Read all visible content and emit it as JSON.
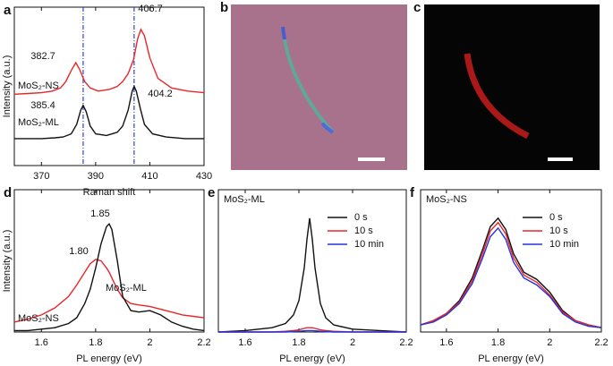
{
  "chart_data": [
    {
      "type": "line",
      "panel": "a",
      "xlabel": "Raman shift",
      "ylabel": "Intensity (a.u.)",
      "xlim": [
        360,
        430
      ],
      "ylim": [
        0,
        1
      ],
      "xticks": [
        370,
        390,
        410,
        430
      ],
      "vlines": [
        385.4,
        404.2
      ],
      "vline_color": "#3344cc",
      "series": [
        {
          "name": "MoS₂-NS",
          "color": "#e8262a",
          "x": [
            360,
            365,
            370,
            374,
            377,
            379,
            381,
            382.7,
            384,
            386,
            388,
            391,
            395,
            398,
            400,
            402,
            404,
            405.5,
            406.7,
            408,
            410,
            413,
            418,
            424,
            430
          ],
          "values": [
            0.45,
            0.455,
            0.46,
            0.47,
            0.49,
            0.53,
            0.6,
            0.65,
            0.61,
            0.53,
            0.49,
            0.47,
            0.48,
            0.5,
            0.53,
            0.58,
            0.67,
            0.8,
            0.86,
            0.82,
            0.68,
            0.55,
            0.49,
            0.47,
            0.46
          ]
        },
        {
          "name": "MoS₂-ML",
          "color": "#111111",
          "x": [
            360,
            365,
            370,
            375,
            378,
            381,
            383,
            384.5,
            385.4,
            386.5,
            388,
            390,
            394,
            398,
            400,
            402,
            403.5,
            404.2,
            405,
            406.5,
            408,
            411,
            416,
            423,
            430
          ],
          "values": [
            0.17,
            0.17,
            0.17,
            0.175,
            0.18,
            0.2,
            0.26,
            0.35,
            0.38,
            0.34,
            0.25,
            0.2,
            0.19,
            0.21,
            0.25,
            0.35,
            0.47,
            0.5,
            0.47,
            0.36,
            0.26,
            0.2,
            0.18,
            0.17,
            0.17
          ]
        }
      ],
      "annotations": [
        {
          "text": "382.7",
          "color": "#e8262a"
        },
        {
          "text": "406.7",
          "color": "#e8262a"
        },
        {
          "text": "385.4",
          "color": "#111111"
        },
        {
          "text": "404.2",
          "color": "#111111"
        },
        {
          "text": "MoS₂-NS",
          "color": "#e8262a"
        },
        {
          "text": "MoS₂-ML",
          "color": "#111111"
        }
      ]
    },
    {
      "type": "image",
      "panel": "b"
    },
    {
      "type": "image",
      "panel": "c"
    },
    {
      "type": "line",
      "panel": "d",
      "xlabel": "PL energy (eV)",
      "ylabel": "Intensity (a.u.)",
      "xlim": [
        1.5,
        2.2
      ],
      "ylim": [
        0,
        1
      ],
      "xticks": [
        1.6,
        1.8,
        2.0,
        2.2
      ],
      "series": [
        {
          "name": "MoS₂-NS",
          "color": "#e8262a",
          "x": [
            1.5,
            1.55,
            1.6,
            1.65,
            1.7,
            1.73,
            1.76,
            1.78,
            1.8,
            1.82,
            1.84,
            1.85,
            1.86,
            1.88,
            1.9,
            1.93,
            1.96,
            2.0,
            2.04,
            2.08,
            2.12,
            2.16,
            2.2
          ],
          "values": [
            0.07,
            0.09,
            0.12,
            0.17,
            0.25,
            0.33,
            0.42,
            0.48,
            0.51,
            0.5,
            0.45,
            0.42,
            0.38,
            0.3,
            0.24,
            0.2,
            0.19,
            0.18,
            0.16,
            0.14,
            0.12,
            0.11,
            0.1
          ]
        },
        {
          "name": "MoS₂-ML",
          "color": "#111111",
          "x": [
            1.5,
            1.55,
            1.6,
            1.65,
            1.7,
            1.73,
            1.76,
            1.78,
            1.8,
            1.82,
            1.84,
            1.85,
            1.86,
            1.88,
            1.9,
            1.93,
            1.96,
            2.0,
            2.04,
            2.08,
            2.12,
            2.16,
            2.2
          ],
          "values": [
            0.01,
            0.01,
            0.02,
            0.03,
            0.06,
            0.1,
            0.2,
            0.3,
            0.45,
            0.62,
            0.74,
            0.76,
            0.72,
            0.5,
            0.25,
            0.15,
            0.14,
            0.15,
            0.12,
            0.07,
            0.04,
            0.02,
            0.01
          ]
        }
      ],
      "annotations": [
        {
          "text": "1.85",
          "color": "#111111"
        },
        {
          "text": "1.80",
          "color": "#e8262a"
        },
        {
          "text": "MoS₂-ML",
          "color": "#111111"
        },
        {
          "text": "MoS₂-NS",
          "color": "#e8262a"
        }
      ]
    },
    {
      "type": "line",
      "panel": "e",
      "xlabel": "PL energy (eV)",
      "xlim": [
        1.5,
        2.2
      ],
      "ylim": [
        0,
        1
      ],
      "xticks": [
        1.6,
        1.8,
        2.0,
        2.2
      ],
      "legend": "upper right",
      "series": [
        {
          "name": "0 s",
          "color": "#111111",
          "x": [
            1.5,
            1.6,
            1.7,
            1.75,
            1.78,
            1.8,
            1.82,
            1.83,
            1.84,
            1.85,
            1.86,
            1.88,
            1.9,
            1.93,
            2.0,
            2.1,
            2.2
          ],
          "values": [
            0,
            0.01,
            0.03,
            0.06,
            0.12,
            0.22,
            0.45,
            0.65,
            0.8,
            0.65,
            0.45,
            0.2,
            0.1,
            0.05,
            0.02,
            0.01,
            0
          ]
        },
        {
          "name": "10 s",
          "color": "#e8262a",
          "x": [
            1.5,
            1.6,
            1.7,
            1.75,
            1.78,
            1.8,
            1.82,
            1.83,
            1.84,
            1.85,
            1.86,
            1.88,
            1.9,
            1.93,
            2.0,
            2.1,
            2.2
          ],
          "values": [
            0,
            0,
            0,
            0.005,
            0.01,
            0.015,
            0.025,
            0.03,
            0.03,
            0.03,
            0.025,
            0.015,
            0.01,
            0.005,
            0,
            0,
            0
          ]
        },
        {
          "name": "10 min",
          "color": "#2233dd",
          "x": [
            1.5,
            1.6,
            1.7,
            1.75,
            1.78,
            1.8,
            1.82,
            1.83,
            1.84,
            1.85,
            1.86,
            1.88,
            1.9,
            1.93,
            2.0,
            2.1,
            2.2
          ],
          "values": [
            0,
            0,
            0,
            0,
            0.003,
            0.005,
            0.008,
            0.01,
            0.01,
            0.01,
            0.008,
            0.005,
            0.003,
            0,
            0,
            0,
            0
          ]
        }
      ],
      "annotations": [
        {
          "text": "MoS₂-ML",
          "color": "#111111"
        }
      ]
    },
    {
      "type": "line",
      "panel": "f",
      "xlabel": "PL energy (eV)",
      "xlim": [
        1.5,
        2.2
      ],
      "ylim": [
        0,
        1
      ],
      "xticks": [
        1.6,
        1.8,
        2.0,
        2.2
      ],
      "legend": "upper right",
      "series": [
        {
          "name": "0 s",
          "color": "#111111",
          "x": [
            1.5,
            1.55,
            1.6,
            1.65,
            1.7,
            1.74,
            1.77,
            1.8,
            1.83,
            1.86,
            1.9,
            1.95,
            2.0,
            2.05,
            2.1,
            2.15,
            2.2
          ],
          "values": [
            0.05,
            0.08,
            0.13,
            0.22,
            0.38,
            0.58,
            0.74,
            0.8,
            0.72,
            0.55,
            0.42,
            0.37,
            0.28,
            0.15,
            0.08,
            0.05,
            0.03
          ]
        },
        {
          "name": "10 s",
          "color": "#e8262a",
          "x": [
            1.5,
            1.55,
            1.6,
            1.65,
            1.7,
            1.74,
            1.77,
            1.8,
            1.83,
            1.86,
            1.9,
            1.95,
            2.0,
            2.05,
            2.1,
            2.15,
            2.2
          ],
          "values": [
            0.05,
            0.08,
            0.13,
            0.21,
            0.36,
            0.55,
            0.71,
            0.77,
            0.69,
            0.52,
            0.4,
            0.35,
            0.26,
            0.14,
            0.08,
            0.05,
            0.03
          ]
        },
        {
          "name": "10 min",
          "color": "#2233dd",
          "x": [
            1.5,
            1.55,
            1.6,
            1.65,
            1.7,
            1.74,
            1.77,
            1.8,
            1.83,
            1.86,
            1.9,
            1.95,
            2.0,
            2.05,
            2.1,
            2.15,
            2.2
          ],
          "values": [
            0.05,
            0.07,
            0.12,
            0.2,
            0.34,
            0.52,
            0.67,
            0.73,
            0.65,
            0.49,
            0.38,
            0.33,
            0.25,
            0.13,
            0.07,
            0.04,
            0.03
          ]
        }
      ],
      "annotations": [
        {
          "text": "MoS₂-NS",
          "color": "#e8262a"
        }
      ]
    }
  ]
}
